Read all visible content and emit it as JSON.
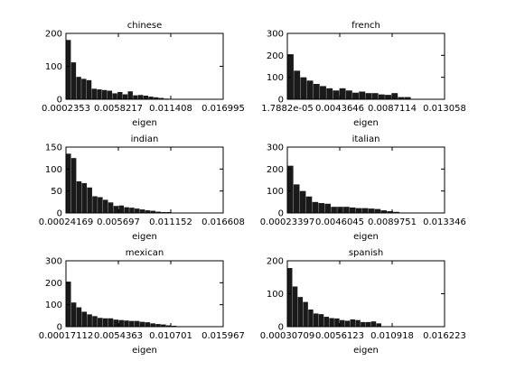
{
  "chart_data": [
    {
      "type": "bar",
      "title": "chinese",
      "xlabel": "eigen",
      "ylabel": "",
      "xticks": [
        "0.0002353",
        "0.0058217",
        "0.011408",
        "0.016995"
      ],
      "xlim": [
        0.0002353,
        0.016995
      ],
      "ylim": [
        0,
        200
      ],
      "yticks": [
        "0",
        "100",
        "200"
      ],
      "bin_width": 0.00055,
      "values": [
        180,
        112,
        68,
        62,
        58,
        32,
        30,
        28,
        26,
        18,
        22,
        15,
        24,
        12,
        13,
        11,
        8,
        6,
        4,
        2,
        1,
        1,
        0,
        0,
        0,
        0,
        0,
        0,
        0,
        0,
        0
      ]
    },
    {
      "type": "bar",
      "title": "french",
      "xlabel": "eigen",
      "ylabel": "",
      "xticks": [
        "1.7882e-05",
        "0.0043646",
        "0.0087114",
        "0.013058"
      ],
      "xlim": [
        1.78e-05,
        0.013058
      ],
      "ylim": [
        0,
        300
      ],
      "yticks": [
        "0",
        "100",
        "200",
        "300"
      ],
      "bin_width": 0.00054,
      "values": [
        205,
        130,
        100,
        85,
        70,
        60,
        50,
        40,
        50,
        40,
        30,
        35,
        28,
        28,
        22,
        20,
        28,
        10,
        10,
        1,
        0,
        0,
        0,
        0
      ]
    },
    {
      "type": "bar",
      "title": "indian",
      "xlabel": "eigen",
      "ylabel": "",
      "xticks": [
        "0.00024169",
        "0.005697",
        "0.011152",
        "0.016608"
      ],
      "xlim": [
        0.00024169,
        0.016608
      ],
      "ylim": [
        0,
        150
      ],
      "yticks": [
        "0",
        "50",
        "100",
        "150"
      ],
      "bin_width": 0.00055,
      "values": [
        135,
        125,
        72,
        68,
        58,
        38,
        36,
        30,
        24,
        16,
        17,
        13,
        12,
        10,
        8,
        6,
        5,
        3,
        2,
        2,
        1,
        1,
        0,
        0,
        0,
        0,
        0,
        0,
        0,
        0
      ]
    },
    {
      "type": "bar",
      "title": "italian",
      "xlabel": "eigen",
      "ylabel": "",
      "xticks": [
        "0.00023397",
        "0.0046045",
        "0.0089751",
        "0.013346"
      ],
      "xlim": [
        0.00023397,
        0.013346
      ],
      "ylim": [
        0,
        300
      ],
      "yticks": [
        "0",
        "100",
        "200",
        "300"
      ],
      "bin_width": 0.00052,
      "values": [
        215,
        130,
        100,
        75,
        50,
        45,
        42,
        28,
        28,
        28,
        25,
        22,
        22,
        20,
        18,
        12,
        8,
        5,
        0,
        0,
        0,
        0,
        0,
        0,
        0
      ]
    },
    {
      "type": "bar",
      "title": "mexican",
      "xlabel": "eigen",
      "ylabel": "",
      "xticks": [
        "0.00017112",
        "0.0054363",
        "0.010701",
        "0.015967"
      ],
      "xlim": [
        0.00017112,
        0.015967
      ],
      "ylim": [
        0,
        300
      ],
      "yticks": [
        "0",
        "100",
        "200",
        "300"
      ],
      "bin_width": 0.00053,
      "values": [
        205,
        110,
        88,
        68,
        56,
        48,
        40,
        38,
        38,
        32,
        30,
        28,
        26,
        26,
        22,
        20,
        15,
        12,
        10,
        6,
        4,
        2,
        1,
        0,
        0,
        0,
        0,
        0,
        0,
        0
      ]
    },
    {
      "type": "bar",
      "title": "spanish",
      "xlabel": "eigen",
      "ylabel": "",
      "xticks": [
        "0.00030709",
        "0.0056123",
        "0.010918",
        "0.016223"
      ],
      "xlim": [
        0.00030709,
        0.016223
      ],
      "ylim": [
        0,
        200
      ],
      "yticks": [
        "0",
        "100",
        "200"
      ],
      "bin_width": 0.00053,
      "values": [
        178,
        122,
        90,
        75,
        52,
        40,
        38,
        30,
        26,
        25,
        20,
        18,
        22,
        20,
        14,
        14,
        16,
        10,
        1,
        0,
        0,
        0,
        0,
        0,
        0,
        0,
        0,
        0,
        0,
        0
      ]
    }
  ],
  "colors": {
    "bar": "#1a1a1a",
    "axis": "#000000",
    "background": "#ffffff"
  }
}
